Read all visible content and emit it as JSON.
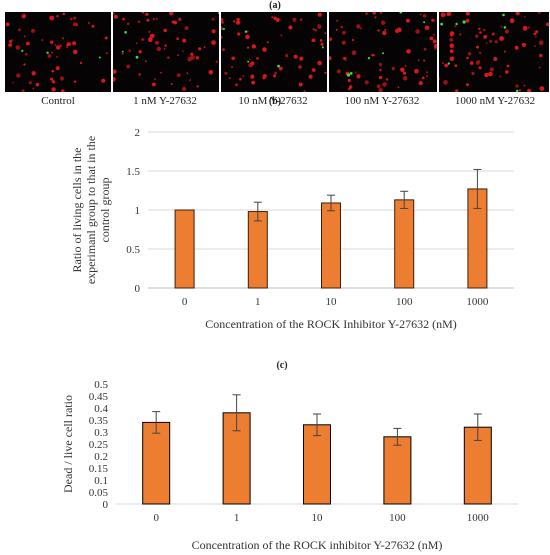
{
  "panel_labels": {
    "a": "(a)",
    "b": "(b)",
    "c": "(c)"
  },
  "micrographs": {
    "captions": [
      "Control",
      "1 nM Y-27632",
      "10 nM Y-27632",
      "100 nM Y-27632",
      "1000 nM Y-27632"
    ]
  },
  "chart_data": [
    {
      "type": "bar",
      "panel": "b",
      "categories": [
        "0",
        "1",
        "10",
        "100",
        "1000"
      ],
      "values": [
        1.0,
        0.98,
        1.09,
        1.13,
        1.27
      ],
      "error": [
        0,
        0.12,
        0.1,
        0.11,
        0.25
      ],
      "xlabel": "Concentration of the ROCK Inhibitor Y-27632 (nM)",
      "ylabel_lines": [
        "Ratio of living cells in the",
        "experimanl group to that in the",
        "control group"
      ],
      "ylim": [
        0,
        2
      ],
      "yticks": [
        "0",
        "0.5",
        "1",
        "1.5",
        "2"
      ],
      "grid": true,
      "bar_color": "#ED7D31",
      "bar_edge": "#3a1f0e"
    },
    {
      "type": "bar",
      "panel": "c",
      "categories": [
        "0",
        "1",
        "10",
        "100",
        "1000"
      ],
      "values": [
        0.34,
        0.38,
        0.33,
        0.28,
        0.32
      ],
      "error": [
        0.045,
        0.075,
        0.045,
        0.035,
        0.055
      ],
      "xlabel": "Concentration of the ROCK inhibitor Y-27632 (nM)",
      "ylabel": "Dead / live cell ratio",
      "ylim": [
        0,
        0.5
      ],
      "yticks": [
        "0",
        "0.05",
        "0.1",
        "0.15",
        "0.2",
        "0.25",
        "0.3",
        "0.35",
        "0.4",
        "0.45",
        "0.5"
      ],
      "grid": false,
      "bar_color": "#ED7D31",
      "bar_edge": "#000000"
    }
  ]
}
